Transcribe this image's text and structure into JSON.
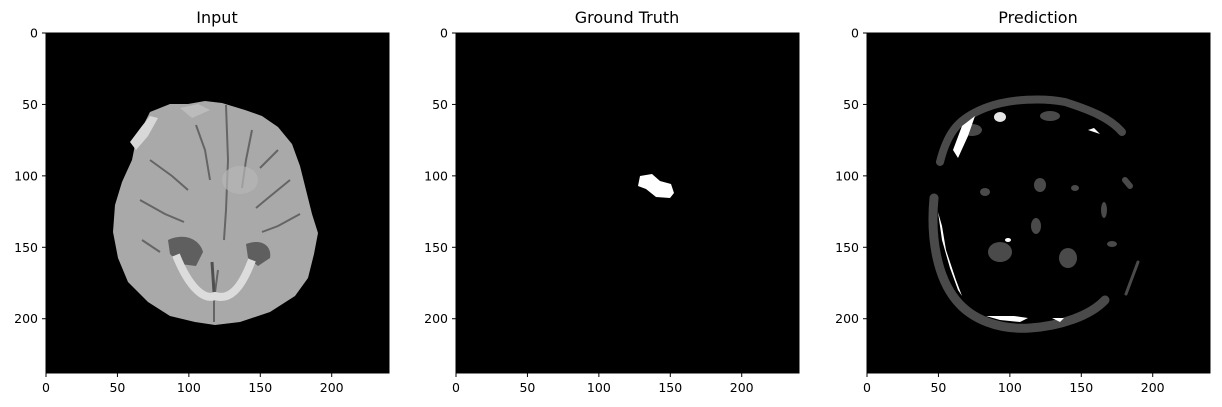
{
  "figure": {
    "panels": [
      {
        "id": "input",
        "title": "Input"
      },
      {
        "id": "ground_truth",
        "title": "Ground Truth"
      },
      {
        "id": "prediction",
        "title": "Prediction"
      }
    ],
    "x_ticks": [
      "0",
      "50",
      "100",
      "150",
      "200"
    ],
    "y_ticks": [
      "0",
      "50",
      "100",
      "150",
      "200"
    ],
    "colors": {
      "background": "#000000",
      "mask": "#ffffff",
      "prediction_gray": "#4a4a4a",
      "brain_gray": "#a8a8a8"
    }
  }
}
